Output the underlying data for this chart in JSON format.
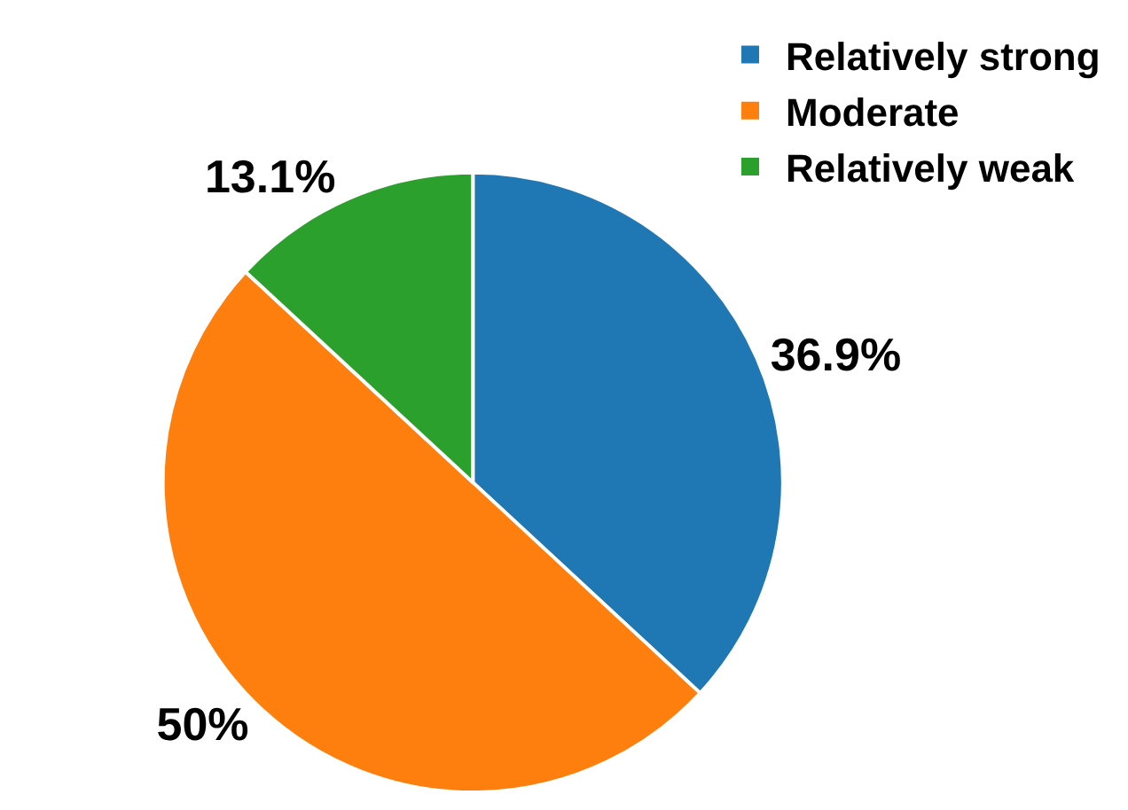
{
  "chart_data": {
    "type": "pie",
    "categories": [
      "Relatively strong",
      "Moderate",
      "Relatively weak"
    ],
    "values": [
      36.9,
      50,
      13.1
    ],
    "colors": [
      "#1f77b4",
      "#ff7f0e",
      "#2ca02c"
    ],
    "value_labels": [
      "36.9%",
      "50%",
      "13.1%"
    ],
    "legend": "top right"
  }
}
